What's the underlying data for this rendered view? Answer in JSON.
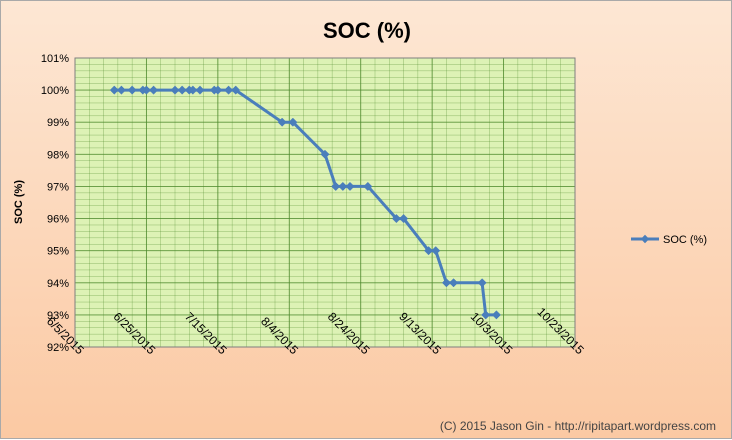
{
  "chart_data": {
    "type": "line",
    "title": "SOC (%)",
    "xlabel": "",
    "ylabel": "SOC (%)",
    "x_ticks": [
      "6/5/2015",
      "6/25/2015",
      "7/15/2015",
      "8/4/2015",
      "8/24/2015",
      "9/13/2015",
      "10/3/2015",
      "10/23/2015"
    ],
    "x_range": [
      "2015-06-05",
      "2015-10-23"
    ],
    "y_ticks": [
      "92%",
      "93%",
      "94%",
      "95%",
      "96%",
      "97%",
      "98%",
      "99%",
      "100%",
      "101%"
    ],
    "ylim": [
      92,
      101
    ],
    "grid": true,
    "legend_position": "right",
    "series": [
      {
        "name": "SOC (%)",
        "color": "#4a7ebb",
        "points": [
          {
            "x": "2015-06-16",
            "y": 100
          },
          {
            "x": "2015-06-18",
            "y": 100
          },
          {
            "x": "2015-06-21",
            "y": 100
          },
          {
            "x": "2015-06-24",
            "y": 100
          },
          {
            "x": "2015-06-25",
            "y": 100
          },
          {
            "x": "2015-06-27",
            "y": 100
          },
          {
            "x": "2015-07-03",
            "y": 100
          },
          {
            "x": "2015-07-05",
            "y": 100
          },
          {
            "x": "2015-07-07",
            "y": 100
          },
          {
            "x": "2015-07-08",
            "y": 100
          },
          {
            "x": "2015-07-10",
            "y": 100
          },
          {
            "x": "2015-07-14",
            "y": 100
          },
          {
            "x": "2015-07-15",
            "y": 100
          },
          {
            "x": "2015-07-18",
            "y": 100
          },
          {
            "x": "2015-07-20",
            "y": 100
          },
          {
            "x": "2015-08-02",
            "y": 99
          },
          {
            "x": "2015-08-05",
            "y": 99
          },
          {
            "x": "2015-08-14",
            "y": 98
          },
          {
            "x": "2015-08-17",
            "y": 97
          },
          {
            "x": "2015-08-19",
            "y": 97
          },
          {
            "x": "2015-08-21",
            "y": 97
          },
          {
            "x": "2015-08-26",
            "y": 97
          },
          {
            "x": "2015-09-03",
            "y": 96
          },
          {
            "x": "2015-09-05",
            "y": 96
          },
          {
            "x": "2015-09-12",
            "y": 95
          },
          {
            "x": "2015-09-14",
            "y": 95
          },
          {
            "x": "2015-09-17",
            "y": 94
          },
          {
            "x": "2015-09-19",
            "y": 94
          },
          {
            "x": "2015-09-27",
            "y": 94
          },
          {
            "x": "2015-09-28",
            "y": 93
          },
          {
            "x": "2015-10-01",
            "y": 93
          }
        ]
      }
    ],
    "plot_background": "#ddf2b5",
    "grid_color": "#4e8a2c",
    "credit": "(C) 2015 Jason Gin - http://ripitapart.wordpress.com"
  }
}
